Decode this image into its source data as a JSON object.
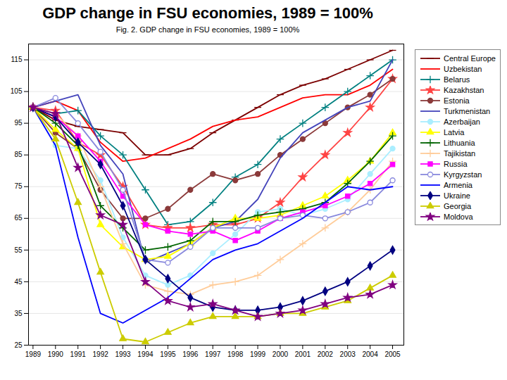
{
  "chart_data": {
    "type": "line",
    "title": "GDP change in FSU economies, 1989 = 100%",
    "subtitle": "Fig. 2. GDP change in FSU economies, 1989 = 100%",
    "x": [
      1989,
      1990,
      1991,
      1992,
      1993,
      1994,
      1995,
      1996,
      1997,
      1998,
      1999,
      2000,
      2001,
      2002,
      2003,
      2004,
      2005
    ],
    "xlim": [
      1988.8,
      2005.5
    ],
    "xticks": [
      1989,
      1990,
      1991,
      1992,
      1993,
      1994,
      1995,
      1996,
      1997,
      1998,
      1999,
      2000,
      2001,
      2002,
      2003,
      2004,
      2005
    ],
    "ylim": [
      25,
      120
    ],
    "yticks": [
      25,
      35,
      45,
      55,
      65,
      75,
      85,
      95,
      105,
      115
    ],
    "grid": "y",
    "legend": "right",
    "series": [
      {
        "name": "Central Europe",
        "color": "#7B0000",
        "marker": "hline",
        "values": [
          100,
          96,
          94,
          93,
          92,
          85,
          85,
          87,
          92,
          96,
          100,
          104,
          107,
          109,
          112,
          115,
          118
        ]
      },
      {
        "name": "Uzbekistan",
        "color": "#FF0000",
        "values": [
          100,
          102,
          99,
          89,
          83,
          84,
          87,
          90,
          94,
          96,
          97,
          100,
          103,
          104,
          104,
          107,
          112
        ]
      },
      {
        "name": "Belarus",
        "color": "#008080",
        "marker": "plus",
        "values": [
          100,
          98,
          99,
          91,
          85,
          74,
          63,
          64,
          70,
          78,
          82,
          90,
          95,
          100,
          105,
          110,
          115
        ]
      },
      {
        "name": "Kazakhstan",
        "color": "#FF4444",
        "marker": "star",
        "values": [
          100,
          99,
          89,
          85,
          75,
          63,
          62,
          62,
          63,
          63,
          65,
          70,
          78,
          85,
          92,
          100,
          109
        ]
      },
      {
        "name": "Estonia",
        "color": "#8B3A3A",
        "marker": "circle",
        "values": [
          100,
          92,
          87,
          74,
          65,
          65,
          68,
          74,
          79,
          77,
          79,
          85,
          90,
          95,
          100,
          104,
          109
        ]
      },
      {
        "name": "Turkmenistan",
        "color": "#4444BB",
        "values": [
          100,
          102,
          104,
          88,
          79,
          51,
          54,
          57,
          62,
          64,
          71,
          84,
          92,
          96,
          100,
          102,
          115
        ]
      },
      {
        "name": "Azerbaijan",
        "color": "#AAEEFF",
        "marker": "circle",
        "values": [
          100,
          88,
          87,
          77,
          59,
          47,
          44,
          47,
          54,
          60,
          67,
          68,
          66,
          68,
          71,
          79,
          87
        ]
      },
      {
        "name": "Latvia",
        "color": "#FFFF00",
        "marker": "triangle",
        "values": [
          100,
          93,
          87,
          63,
          56,
          52,
          53,
          57,
          62,
          65,
          65,
          66,
          69,
          72,
          77,
          83,
          92
        ]
      },
      {
        "name": "Lithuania",
        "color": "#006400",
        "marker": "plus",
        "values": [
          100,
          95,
          88,
          69,
          62,
          55,
          56,
          58,
          64,
          64,
          66,
          67,
          68,
          70,
          76,
          83,
          91
        ]
      },
      {
        "name": "Tajikistan",
        "color": "#FFCC99",
        "marker": "plus",
        "values": [
          100,
          98,
          91,
          75,
          57,
          44,
          42,
          41,
          44,
          45,
          47,
          52,
          57,
          62,
          67,
          74,
          83
        ]
      },
      {
        "name": "Russia",
        "color": "#FF00FF",
        "marker": "square",
        "values": [
          100,
          97,
          91,
          83,
          72,
          63,
          61,
          60,
          61,
          58,
          61,
          65,
          67,
          69,
          72,
          76,
          82
        ]
      },
      {
        "name": "Kyrgyzstan",
        "color": "#8888DD",
        "marker": "circle_open",
        "values": [
          100,
          103,
          95,
          86,
          74,
          52,
          51,
          56,
          62,
          62,
          62,
          65,
          66,
          65,
          67,
          70,
          77
        ]
      },
      {
        "name": "Armenia",
        "color": "#0000FF",
        "values": [
          100,
          88,
          59,
          35,
          32,
          36,
          40,
          46,
          52,
          55,
          57,
          61,
          65,
          70,
          75,
          74,
          75
        ]
      },
      {
        "name": "Ukraine",
        "color": "#000080",
        "marker": "diamond",
        "values": [
          100,
          97,
          89,
          82,
          69,
          52,
          46,
          40,
          37,
          36,
          36,
          37,
          39,
          42,
          45,
          50,
          55
        ]
      },
      {
        "name": "Georgia",
        "color": "#CCCC00",
        "marker": "triangle",
        "values": [
          100,
          90,
          70,
          48,
          27,
          26,
          29,
          32,
          34,
          34,
          34,
          35,
          35,
          37,
          39,
          43,
          47
        ]
      },
      {
        "name": "Moldova",
        "color": "#800080",
        "marker": "star",
        "values": [
          100,
          98,
          81,
          66,
          63,
          45,
          39,
          37,
          38,
          36,
          34,
          35,
          36,
          38,
          40,
          41,
          44
        ]
      }
    ]
  }
}
